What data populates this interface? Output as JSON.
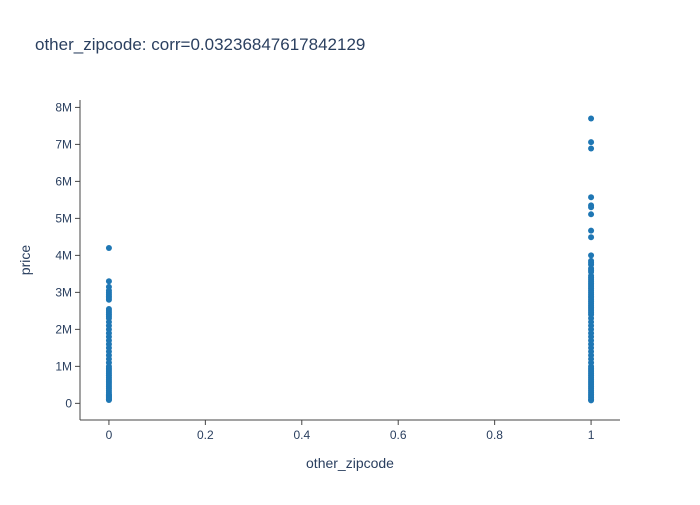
{
  "chart_data": {
    "type": "scatter",
    "title": "other_zipcode: corr=0.03236847617842129",
    "xlabel": "other_zipcode",
    "ylabel": "price",
    "xlim": [
      -0.06,
      1.06
    ],
    "ylim": [
      -450000,
      8200000
    ],
    "x_ticks": [
      {
        "value": 0,
        "label": "0"
      },
      {
        "value": 0.2,
        "label": "0.2"
      },
      {
        "value": 0.4,
        "label": "0.4"
      },
      {
        "value": 0.6,
        "label": "0.6"
      },
      {
        "value": 0.8,
        "label": "0.8"
      },
      {
        "value": 1,
        "label": "1"
      }
    ],
    "y_ticks": [
      {
        "value": 0,
        "label": "0"
      },
      {
        "value": 1000000,
        "label": "1M"
      },
      {
        "value": 2000000,
        "label": "2M"
      },
      {
        "value": 3000000,
        "label": "3M"
      },
      {
        "value": 4000000,
        "label": "4M"
      },
      {
        "value": 5000000,
        "label": "5M"
      },
      {
        "value": 6000000,
        "label": "6M"
      },
      {
        "value": 7000000,
        "label": "7M"
      },
      {
        "value": 8000000,
        "label": "8M"
      }
    ],
    "grid": false,
    "marker_color": "#1f77b4",
    "series": [
      {
        "x": [
          0,
          0,
          0,
          0,
          0,
          0,
          0,
          0,
          0,
          0,
          0,
          0,
          0,
          0,
          0,
          0,
          0,
          0,
          0,
          0,
          0,
          0,
          0,
          0,
          0,
          0,
          0,
          0,
          0,
          0,
          0,
          0,
          0,
          0,
          0,
          0,
          0,
          0,
          0,
          0,
          0,
          0,
          0,
          0,
          0,
          0,
          0,
          0,
          0,
          0
        ],
        "y": [
          4200000,
          3300000,
          3150000,
          3050000,
          3000000,
          2950000,
          2900000,
          2850000,
          2800000,
          2550000,
          2500000,
          2450000,
          2400000,
          2350000,
          2300000,
          2200000,
          2100000,
          2000000,
          1900000,
          1800000,
          1700000,
          1600000,
          1500000,
          1400000,
          1300000,
          1200000,
          1100000,
          1000000,
          950000,
          900000,
          850000,
          800000,
          750000,
          700000,
          650000,
          600000,
          550000,
          500000,
          450000,
          400000,
          350000,
          300000,
          250000,
          220000,
          200000,
          180000,
          150000,
          130000,
          100000,
          90000
        ]
      },
      {
        "x": [
          1,
          1,
          1,
          1,
          1,
          1,
          1,
          1,
          1,
          1,
          1,
          1,
          1,
          1,
          1,
          1,
          1,
          1,
          1,
          1,
          1,
          1,
          1,
          1,
          1,
          1,
          1,
          1,
          1,
          1,
          1,
          1,
          1,
          1,
          1,
          1,
          1,
          1,
          1,
          1,
          1,
          1,
          1,
          1,
          1,
          1,
          1,
          1,
          1,
          1,
          1,
          1,
          1,
          1,
          1,
          1,
          1,
          1,
          1,
          1,
          1,
          1,
          1,
          1,
          1,
          1,
          1,
          1,
          1,
          1,
          1
        ],
        "y": [
          7700000,
          7060000,
          6890000,
          5570000,
          5350000,
          5300000,
          5110000,
          4670000,
          4490000,
          4000000,
          3850000,
          3800000,
          3750000,
          3650000,
          3600000,
          3550000,
          3450000,
          3400000,
          3350000,
          3300000,
          3250000,
          3200000,
          3150000,
          3100000,
          3050000,
          3000000,
          2950000,
          2900000,
          2850000,
          2800000,
          2750000,
          2700000,
          2650000,
          2600000,
          2550000,
          2500000,
          2450000,
          2400000,
          2300000,
          2200000,
          2100000,
          2000000,
          1900000,
          1800000,
          1700000,
          1600000,
          1500000,
          1400000,
          1300000,
          1200000,
          1100000,
          1000000,
          950000,
          900000,
          850000,
          800000,
          750000,
          700000,
          650000,
          600000,
          550000,
          500000,
          450000,
          400000,
          350000,
          300000,
          250000,
          200000,
          150000,
          100000,
          80000
        ]
      }
    ]
  }
}
